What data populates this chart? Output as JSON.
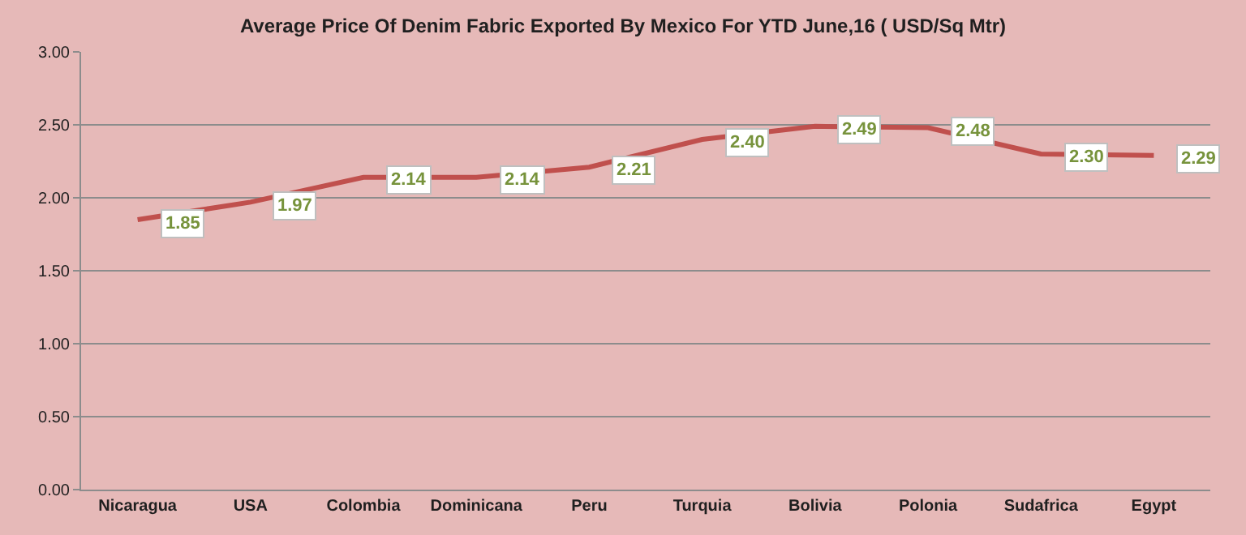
{
  "chart_data": {
    "type": "line",
    "title": "Average Price Of Denim Fabric Exported By Mexico For YTD June,16 ( USD/Sq Mtr)",
    "categories": [
      "Nicaragua",
      "USA",
      "Colombia",
      "Dominicana",
      "Peru",
      "Turquia",
      "Bolivia",
      "Polonia",
      "Sudafrica",
      "Egypt"
    ],
    "series": [
      {
        "color": "#c0504d",
        "values": [
          1.85,
          1.97,
          2.14,
          2.14,
          2.21,
          2.4,
          2.49,
          2.48,
          2.3,
          2.29
        ],
        "value_labels": [
          "1.85",
          "1.97",
          "2.14",
          "2.14",
          "2.21",
          "2.40",
          "2.49",
          "2.48",
          "2.30",
          "2.29"
        ]
      }
    ],
    "ylim": [
      0,
      3
    ],
    "yticks": [
      {
        "value": 0,
        "label": "0.00"
      },
      {
        "value": 0.5,
        "label": "0.50"
      },
      {
        "value": 1,
        "label": "1.00"
      },
      {
        "value": 1.5,
        "label": "1.50"
      },
      {
        "value": 2,
        "label": "2.00"
      },
      {
        "value": 2.5,
        "label": "2.50"
      },
      {
        "value": 3,
        "label": "3.00"
      }
    ],
    "grid": "y",
    "marker": "none",
    "line_style": "solid"
  }
}
